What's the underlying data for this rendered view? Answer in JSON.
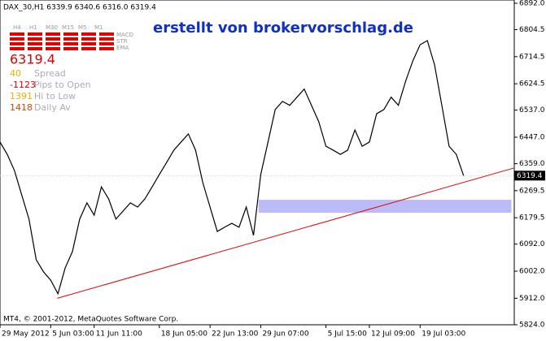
{
  "chart_data": {
    "type": "line",
    "header": "DAX_30,H1  6339.9 6340.6 6316.0 6319.4",
    "watermark": "erstellt von brokervorschlag.de",
    "footer": "MT4, © 2001-2012, MetaQuotes Software Corp.",
    "x": [
      0,
      1,
      2,
      3,
      4,
      5,
      6,
      7,
      8,
      9,
      10,
      11,
      12,
      13,
      14,
      15,
      16,
      17,
      18,
      19,
      20,
      21,
      22,
      23,
      24,
      25,
      26,
      27,
      28,
      29,
      30,
      31,
      32,
      33,
      34,
      35,
      36,
      37,
      38,
      39,
      40,
      41,
      42,
      43,
      44,
      45,
      46,
      47,
      48,
      49,
      50,
      51,
      52,
      53,
      54,
      55,
      56,
      57,
      58,
      59,
      60,
      61,
      62,
      63,
      64
    ],
    "series": [
      {
        "name": "DAX_30",
        "color": "#000000",
        "values": [
          6431,
          6390,
          6336,
          6255,
          6175,
          6040,
          6000,
          5972,
          5927,
          6013,
          6067,
          6175,
          6229,
          6188,
          6282,
          6242,
          6175,
          6202,
          6229,
          6215,
          6242,
          6282,
          6323,
          6363,
          6404,
          6431,
          6458,
          6404,
          6296,
          6215,
          6134,
          6148,
          6161,
          6148,
          6215,
          6121,
          6323,
          6431,
          6539,
          6566,
          6553,
          6580,
          6607,
          6553,
          6499,
          6417,
          6404,
          6390,
          6404,
          6471,
          6417,
          6431,
          6525,
          6539,
          6580,
          6553,
          6633,
          6701,
          6754,
          6768,
          6687,
          6553,
          6417,
          6390,
          6319.4
        ]
      }
    ],
    "last_price": 6319.4,
    "trendline": {
      "color": "#e00000",
      "x": [
        7.9,
        71
      ],
      "values": [
        5912,
        6345
      ]
    },
    "zone": {
      "color": "#bbbbf8",
      "x": [
        35.7,
        70.6
      ],
      "values": [
        6196,
        6239
      ]
    },
    "xlim": [
      0,
      71
    ],
    "xticks": [
      {
        "value": 0,
        "label": "29 May 2012"
      },
      {
        "value": 7,
        "label": "5 Jun 03:00"
      },
      {
        "value": 13,
        "label": "11 Jun 11:00"
      },
      {
        "value": 22,
        "label": "18 Jun 05:00"
      },
      {
        "value": 29,
        "label": "22 Jun 13:00"
      },
      {
        "value": 36,
        "label": "29 Jun 07:00"
      },
      {
        "value": 45,
        "label": "5 Jul 15:00"
      },
      {
        "value": 51,
        "label": "12 Jul 09:00"
      },
      {
        "value": 58,
        "label": "19 Jul 03:00"
      }
    ],
    "ylim": [
      5824,
      6892
    ],
    "yticks": [
      {
        "value": 5824,
        "label": "5824.0"
      },
      {
        "value": 5912,
        "label": "5912.0"
      },
      {
        "value": 6002,
        "label": "6002.0"
      },
      {
        "value": 6092,
        "label": "6092.0"
      },
      {
        "value": 6179.5,
        "label": "6179.5"
      },
      6269.5,
      {
        "value": 6359,
        "label": "6359.0"
      },
      {
        "value": 6447,
        "label": "6447.0"
      },
      {
        "value": 6537,
        "label": "6537.0"
      },
      6624.5,
      6714.5,
      6804.5,
      {
        "value": 6892,
        "label": "6892.0"
      }
    ]
  },
  "panel": {
    "timeframes": [
      "H4",
      "H1",
      "M30",
      "M15",
      "M5",
      "M1"
    ],
    "indicators": [
      "MACD",
      "STR",
      "EMA"
    ],
    "price": "6319.4",
    "stats": [
      {
        "value": "40",
        "label": "Spread"
      },
      {
        "value": "-1123",
        "label": "Pips to Open"
      },
      {
        "value": "1391",
        "label": "Hi to Low"
      },
      {
        "value": "1418",
        "label": "Daily Av"
      }
    ]
  }
}
